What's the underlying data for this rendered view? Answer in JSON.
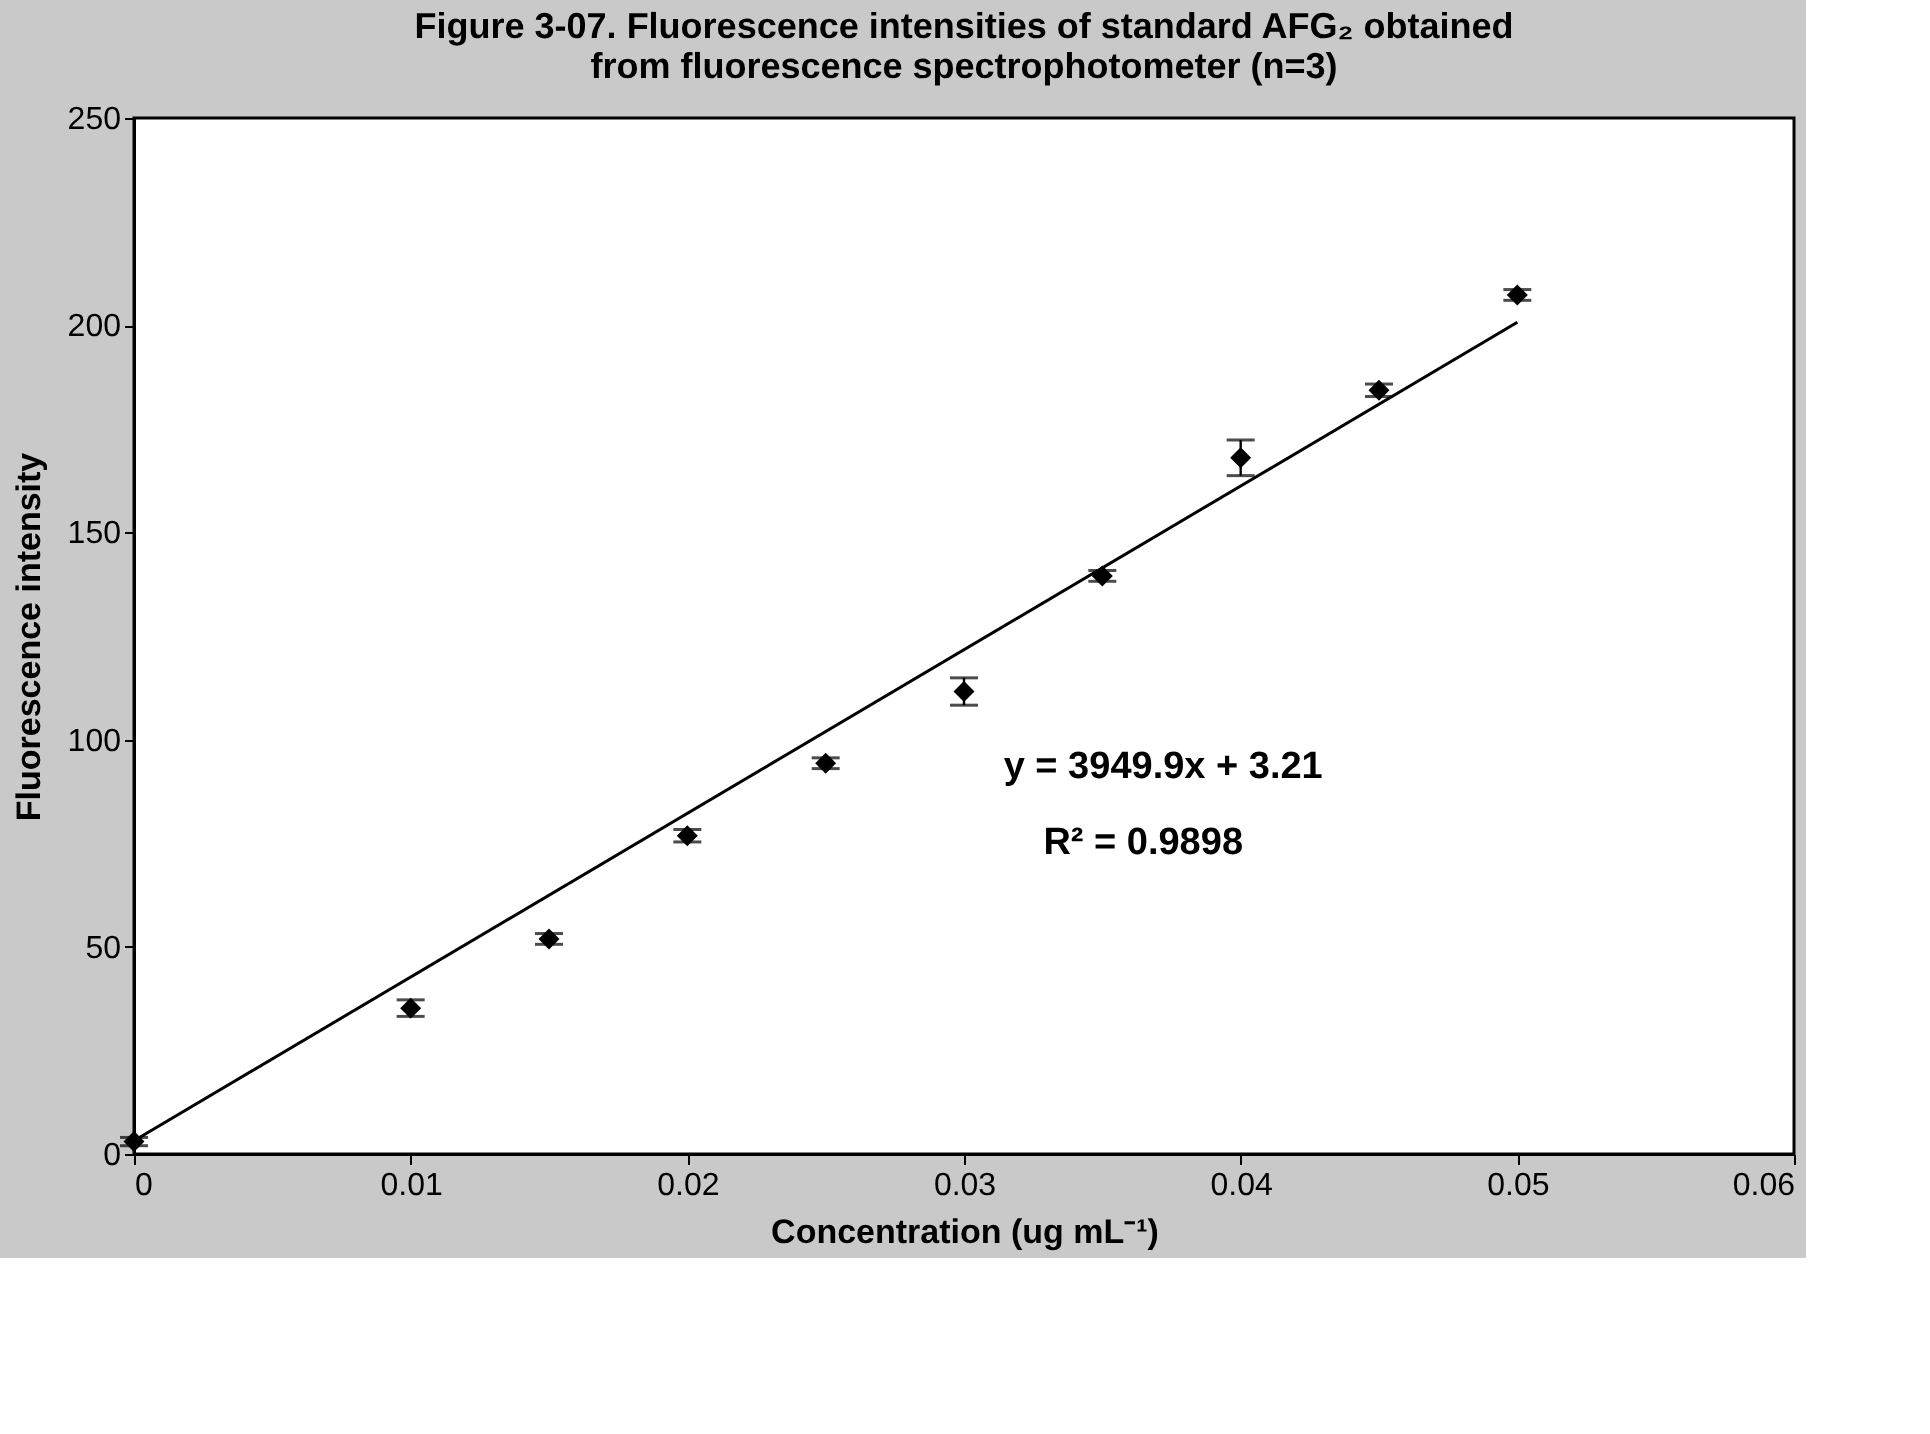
{
  "chart_data": {
    "type": "scatter",
    "title": "Figure 3-07. Fluorescence intensities of standard AFG₂ obtained from fluorescence spectrophotometer (n=3)",
    "xlabel": "Concentration (ug mL⁻¹)",
    "ylabel": "Fluorescence intensity",
    "xlim": [
      0,
      0.06
    ],
    "xticks": [
      0,
      0.01,
      0.02,
      0.03,
      0.04,
      0.05,
      0.06
    ],
    "ylim": [
      0,
      250
    ],
    "yticks": [
      0,
      50,
      100,
      150,
      200,
      250
    ],
    "series": [
      {
        "color": "#000000",
        "marker": "diamond",
        "x": [
          0,
          0.01,
          0.015,
          0.02,
          0.025,
          0.03,
          0.035,
          0.04,
          0.045,
          0.05
        ],
        "values": [
          3,
          35.2,
          51.9,
          76.8,
          94.3,
          111.6,
          139.5,
          168,
          184.3,
          207.3
        ],
        "errors": [
          1,
          2,
          1.3,
          1.5,
          1.3,
          3.3,
          1.3,
          4.3,
          1.5,
          1.3
        ]
      },
      {
        "type": "line",
        "color": "#000000",
        "x": [
          0,
          0.05
        ],
        "values": [
          3.2,
          200.7
        ],
        "line_style": "solid"
      }
    ],
    "annotations": [
      "y = 3949.9x + 3.21",
      "R² = 0.9898"
    ]
  }
}
